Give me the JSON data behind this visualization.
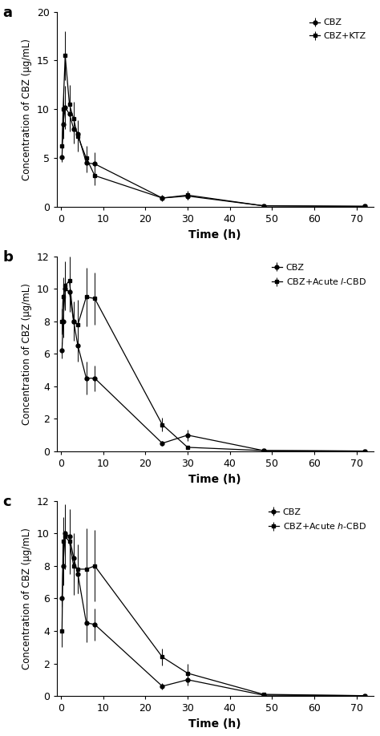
{
  "panels": [
    {
      "label": "a",
      "ylabel": "Concentration of CBZ (μg/mL)",
      "xlabel": "Time (h)",
      "ylim": [
        0,
        20
      ],
      "yticks": [
        0,
        5,
        10,
        15,
        20
      ],
      "xticks": [
        0,
        10,
        20,
        30,
        40,
        50,
        60,
        70
      ],
      "legend_labels": [
        "CBZ",
        "CBZ+KTZ"
      ],
      "series": [
        {
          "label": "CBZ",
          "marker": "o",
          "x": [
            0.25,
            0.5,
            1,
            2,
            3,
            4,
            6,
            8,
            24,
            30,
            48,
            72
          ],
          "y": [
            5.1,
            8.5,
            10.2,
            9.5,
            8.0,
            7.5,
            4.5,
            4.4,
            0.9,
            1.1,
            0.1,
            0.05
          ],
          "yerr": [
            0.5,
            1.5,
            2.2,
            1.8,
            1.5,
            1.4,
            1.0,
            1.2,
            0.3,
            0.4,
            0.05,
            0.02
          ]
        },
        {
          "label": "CBZ+KTZ",
          "marker": "s",
          "x": [
            0.25,
            0.5,
            1,
            2,
            3,
            4,
            6,
            8,
            24,
            30,
            48,
            72
          ],
          "y": [
            6.2,
            10.0,
            15.5,
            10.5,
            9.0,
            7.2,
            5.0,
            3.2,
            0.9,
            1.2,
            0.1,
            0.05
          ],
          "yerr": [
            0.8,
            1.8,
            2.5,
            2.0,
            1.8,
            1.5,
            1.2,
            1.0,
            0.25,
            0.45,
            0.05,
            0.02
          ]
        }
      ]
    },
    {
      "label": "b",
      "ylabel": "Concentration of CBZ (μg/mL)",
      "xlabel": "Time (h)",
      "ylim": [
        0,
        12
      ],
      "yticks": [
        0,
        2,
        4,
        6,
        8,
        10,
        12
      ],
      "xticks": [
        0,
        10,
        20,
        30,
        40,
        50,
        60,
        70
      ],
      "legend_labels": [
        "CBZ",
        "CBZ+Acute $\\it{l}$-CBD"
      ],
      "series": [
        {
          "label": "CBZ",
          "marker": "o",
          "x": [
            0.25,
            0.5,
            1,
            2,
            3,
            4,
            6,
            8,
            24,
            30,
            48,
            72
          ],
          "y": [
            6.2,
            8.0,
            10.0,
            9.8,
            8.0,
            6.5,
            4.5,
            4.5,
            0.5,
            1.0,
            0.05,
            0.02
          ],
          "yerr": [
            0.5,
            1.0,
            1.2,
            1.2,
            1.0,
            1.0,
            1.0,
            0.8,
            0.15,
            0.35,
            0.02,
            0.01
          ]
        },
        {
          "label": "CBZ+Acute l-CBD",
          "marker": "s",
          "x": [
            0.25,
            0.5,
            1,
            2,
            3,
            4,
            6,
            8,
            24,
            30,
            48,
            72
          ],
          "y": [
            8.0,
            9.5,
            10.2,
            10.5,
            8.0,
            7.8,
            9.5,
            9.4,
            1.65,
            0.25,
            0.05,
            0.02
          ],
          "yerr": [
            0.8,
            1.2,
            1.5,
            1.5,
            1.2,
            1.5,
            1.8,
            1.6,
            0.4,
            0.1,
            0.02,
            0.01
          ]
        }
      ]
    },
    {
      "label": "c",
      "ylabel": "Concentration of CBZ (μg/mL)",
      "xlabel": "Time (h)",
      "ylim": [
        0,
        12
      ],
      "yticks": [
        0,
        2,
        4,
        6,
        8,
        10,
        12
      ],
      "xticks": [
        0,
        10,
        20,
        30,
        40,
        50,
        60,
        70
      ],
      "legend_labels": [
        "CBZ",
        "CBZ+Acute $\\it{h}$-CBD"
      ],
      "series": [
        {
          "label": "CBZ",
          "marker": "o",
          "x": [
            0.25,
            0.5,
            1,
            2,
            3,
            4,
            6,
            8,
            24,
            30,
            48,
            72
          ],
          "y": [
            6.0,
            8.0,
            10.0,
            9.8,
            8.5,
            7.5,
            4.5,
            4.4,
            0.6,
            1.0,
            0.05,
            0.02
          ],
          "yerr": [
            0.5,
            1.2,
            1.5,
            1.5,
            1.5,
            1.2,
            1.2,
            1.0,
            0.2,
            0.35,
            0.02,
            0.01
          ]
        },
        {
          "label": "CBZ+Acute h-CBD",
          "marker": "s",
          "x": [
            0.25,
            0.5,
            1,
            2,
            3,
            4,
            6,
            8,
            24,
            30,
            48,
            72
          ],
          "y": [
            4.0,
            9.5,
            9.8,
            9.5,
            8.0,
            7.8,
            7.8,
            8.0,
            2.4,
            1.4,
            0.1,
            0.02
          ],
          "yerr": [
            1.0,
            1.5,
            2.0,
            2.0,
            1.8,
            1.5,
            2.5,
            2.2,
            0.5,
            0.6,
            0.05,
            0.01
          ]
        }
      ]
    }
  ],
  "color": "#000000",
  "markersize": 3.5,
  "linewidth": 0.9,
  "elinewidth": 0.7,
  "capsize": 0,
  "background": "#ffffff"
}
